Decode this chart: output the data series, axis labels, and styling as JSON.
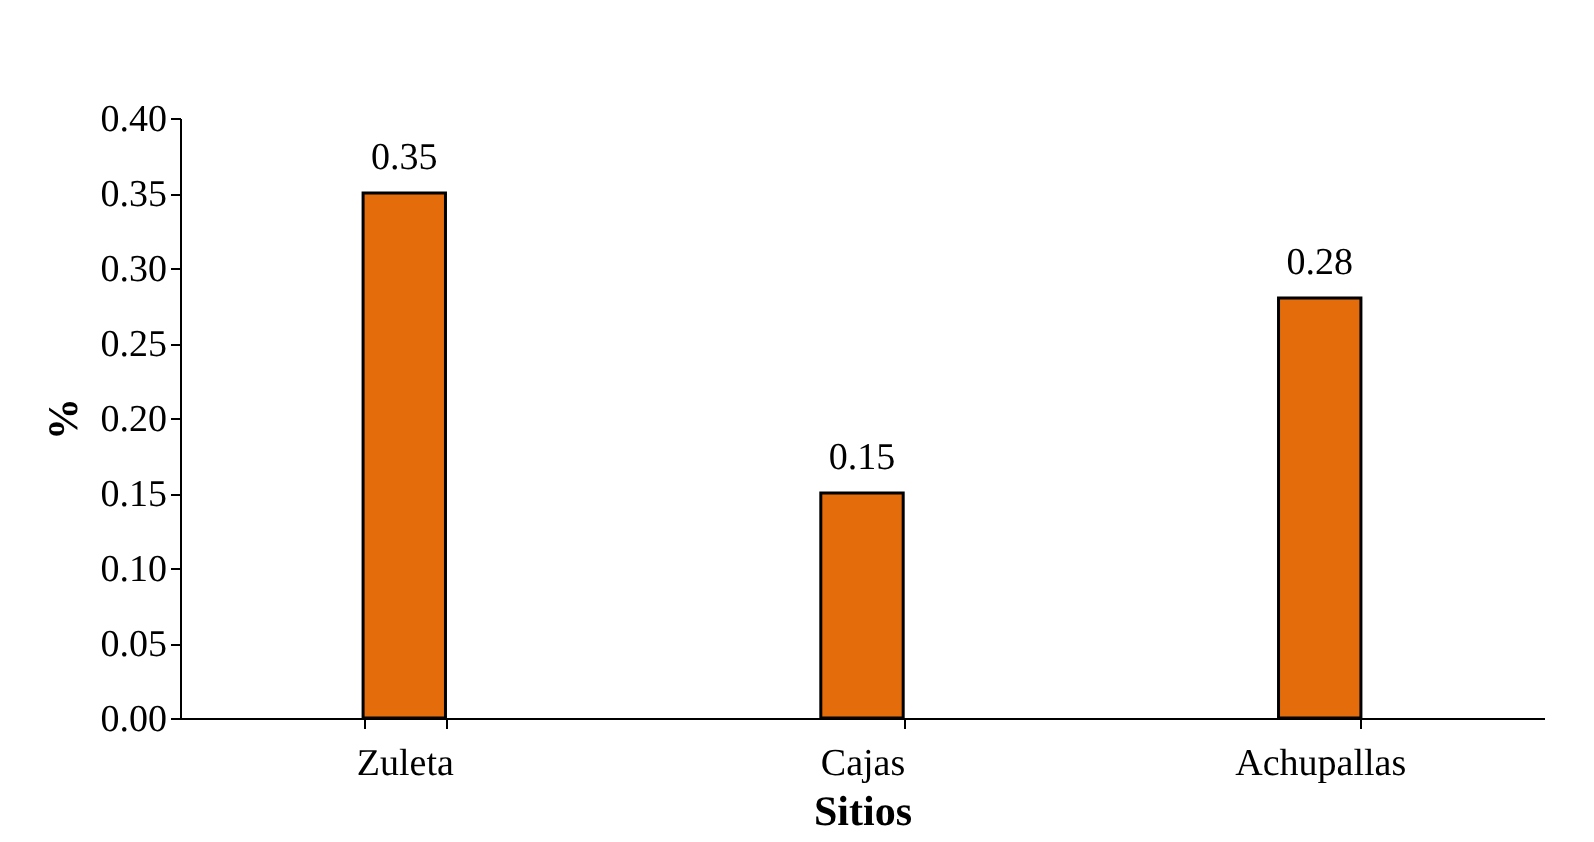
{
  "chart_data": {
    "type": "bar",
    "xlabel": "Sitios",
    "ylabel": "%",
    "categories": [
      "Zuleta",
      "Cajas",
      "Achupallas"
    ],
    "values": [
      0.35,
      0.15,
      0.28
    ],
    "color": "#e46c0a",
    "ylim": [
      0,
      0.4
    ],
    "yticks": [
      {
        "value": 0,
        "label": "0.00"
      },
      {
        "value": 0.05,
        "label": "0.05"
      },
      {
        "value": 0.1,
        "label": "0.10"
      },
      {
        "value": 0.15,
        "label": "0.15"
      },
      {
        "value": 0.2,
        "label": "0.20"
      },
      {
        "value": 0.25,
        "label": "0.25"
      },
      {
        "value": 0.3,
        "label": "0.30"
      },
      {
        "value": 0.35,
        "label": "0.35"
      },
      {
        "value": 0.4,
        "label": "0.40"
      }
    ],
    "data_labels": true,
    "grid": false
  }
}
